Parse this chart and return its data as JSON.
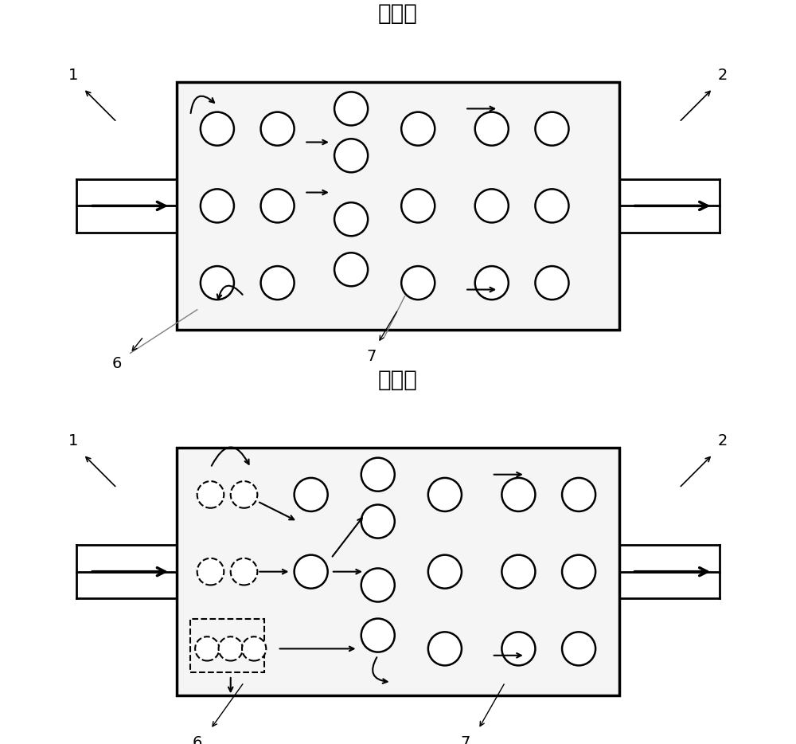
{
  "title1": "无磁场",
  "title2": "有磁场",
  "bg_color": "#ffffff",
  "figsize": [
    10.0,
    9.34
  ],
  "dpi": 100,
  "box_face": "#f5f5f5",
  "box_edge": "#000000",
  "circle_face": "#ffffff",
  "circle_edge": "#000000"
}
